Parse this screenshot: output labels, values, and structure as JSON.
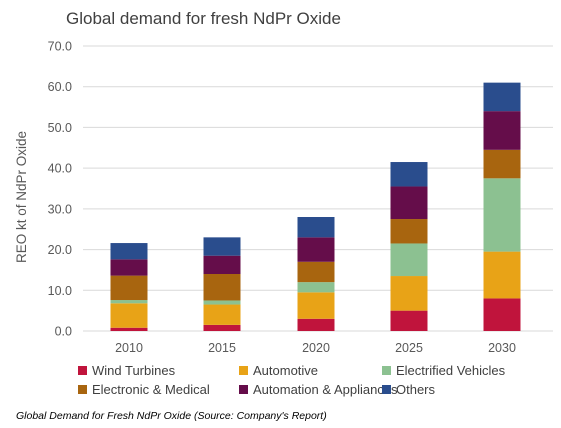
{
  "chart_data": {
    "type": "bar",
    "stacked": true,
    "title": "Global demand for fresh NdPr Oxide",
    "ylabel": "REO kt of NdPr Oxide",
    "xlabel": "",
    "ylim": [
      0,
      70
    ],
    "yticks": [
      "0.0",
      "10.0",
      "20.0",
      "30.0",
      "40.0",
      "50.0",
      "60.0",
      "70.0"
    ],
    "grid": true,
    "legend_position": "bottom",
    "categories": [
      "2010",
      "2015",
      "2020",
      "2025",
      "2030"
    ],
    "series": [
      {
        "name": "Wind Turbines",
        "color": "#c0143c",
        "values": [
          0.8,
          1.5,
          3.0,
          5.0,
          8.0
        ]
      },
      {
        "name": "Automotive",
        "color": "#e8a317",
        "values": [
          6.0,
          5.0,
          6.5,
          8.5,
          11.5
        ]
      },
      {
        "name": "Electrified Vehicles",
        "color": "#8cc191",
        "values": [
          0.8,
          1.0,
          2.5,
          8.0,
          18.0
        ]
      },
      {
        "name": "Electronic & Medical",
        "color": "#a8650f",
        "values": [
          6.0,
          6.5,
          5.0,
          6.0,
          7.0
        ]
      },
      {
        "name": "Automation & Appliances",
        "color": "#650d4a",
        "values": [
          4.0,
          4.5,
          6.0,
          8.0,
          9.5
        ]
      },
      {
        "name": "Others",
        "color": "#2a4d8d",
        "values": [
          4.0,
          4.5,
          5.0,
          6.0,
          7.0
        ]
      }
    ]
  },
  "caption": "Global Demand for Fresh NdPr Oxide (Source: Company's Report)"
}
